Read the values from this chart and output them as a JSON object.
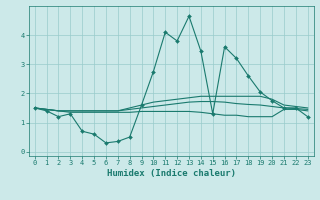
{
  "title": "",
  "xlabel": "Humidex (Indice chaleur)",
  "ylabel": "",
  "background_color": "#cce9e9",
  "grid_color": "#99cccc",
  "line_color": "#1a7a6e",
  "xlim": [
    -0.5,
    23.5
  ],
  "ylim": [
    -0.15,
    5.0
  ],
  "xticks": [
    0,
    1,
    2,
    3,
    4,
    5,
    6,
    7,
    8,
    9,
    10,
    11,
    12,
    13,
    14,
    15,
    16,
    17,
    18,
    19,
    20,
    21,
    22,
    23
  ],
  "yticks": [
    0,
    1,
    2,
    3,
    4
  ],
  "lines": [
    {
      "x": [
        0,
        1,
        2,
        3,
        4,
        5,
        6,
        7,
        8,
        9,
        10,
        11,
        12,
        13,
        14,
        15,
        16,
        17,
        18,
        19,
        20,
        21,
        22,
        23
      ],
      "y": [
        1.5,
        1.4,
        1.2,
        1.3,
        0.7,
        0.6,
        0.3,
        0.35,
        0.5,
        1.6,
        2.75,
        4.1,
        3.8,
        4.65,
        3.45,
        1.3,
        3.6,
        3.2,
        2.6,
        2.05,
        1.75,
        1.5,
        1.5,
        1.2
      ],
      "marker": "D",
      "markersize": 2.0,
      "linewidth": 0.8
    },
    {
      "x": [
        0,
        1,
        2,
        3,
        4,
        5,
        6,
        7,
        8,
        9,
        10,
        11,
        12,
        13,
        14,
        15,
        16,
        17,
        18,
        19,
        20,
        21,
        22,
        23
      ],
      "y": [
        1.5,
        1.45,
        1.4,
        1.4,
        1.4,
        1.4,
        1.4,
        1.4,
        1.5,
        1.6,
        1.7,
        1.75,
        1.8,
        1.85,
        1.9,
        1.9,
        1.9,
        1.9,
        1.9,
        1.9,
        1.8,
        1.6,
        1.55,
        1.5
      ],
      "marker": null,
      "markersize": 0,
      "linewidth": 0.8
    },
    {
      "x": [
        0,
        1,
        2,
        3,
        4,
        5,
        6,
        7,
        8,
        9,
        10,
        11,
        12,
        13,
        14,
        15,
        16,
        17,
        18,
        19,
        20,
        21,
        22,
        23
      ],
      "y": [
        1.5,
        1.45,
        1.4,
        1.4,
        1.4,
        1.4,
        1.4,
        1.4,
        1.45,
        1.5,
        1.55,
        1.6,
        1.65,
        1.7,
        1.72,
        1.72,
        1.7,
        1.65,
        1.62,
        1.6,
        1.55,
        1.5,
        1.48,
        1.45
      ],
      "marker": null,
      "markersize": 0,
      "linewidth": 0.8
    },
    {
      "x": [
        0,
        1,
        2,
        3,
        4,
        5,
        6,
        7,
        8,
        9,
        10,
        11,
        12,
        13,
        14,
        15,
        16,
        17,
        18,
        19,
        20,
        21,
        22,
        23
      ],
      "y": [
        1.5,
        1.45,
        1.4,
        1.35,
        1.35,
        1.35,
        1.35,
        1.35,
        1.35,
        1.38,
        1.38,
        1.38,
        1.38,
        1.38,
        1.35,
        1.3,
        1.25,
        1.25,
        1.2,
        1.2,
        1.2,
        1.45,
        1.45,
        1.4
      ],
      "marker": null,
      "markersize": 0,
      "linewidth": 0.8
    }
  ]
}
